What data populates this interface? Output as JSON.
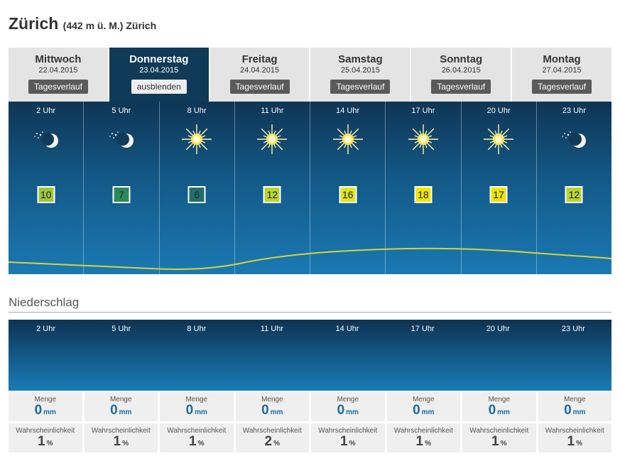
{
  "location": {
    "name": "Zürich",
    "sub": "(442 m ü. M.) Zürich"
  },
  "days": [
    {
      "name": "Mittwoch",
      "date": "22.04.2015",
      "button": "Tagesverlauf",
      "active": false
    },
    {
      "name": "Donnerstag",
      "date": "23.04.2015",
      "button": "ausblenden",
      "active": true
    },
    {
      "name": "Freitag",
      "date": "24.04.2015",
      "button": "Tagesverlauf",
      "active": false
    },
    {
      "name": "Samstag",
      "date": "25.04.2015",
      "button": "Tagesverlauf",
      "active": false
    },
    {
      "name": "Sonntag",
      "date": "26.04.2015",
      "button": "Tagesverlauf",
      "active": false
    },
    {
      "name": "Montag",
      "date": "27.04.2015",
      "button": "Tagesverlauf",
      "active": false
    }
  ],
  "hours": [
    {
      "time": "2 Uhr",
      "icon": "moon-stars-icon",
      "temp": "10",
      "tempColor": "#9dc73c"
    },
    {
      "time": "5 Uhr",
      "icon": "moon-stars-icon",
      "temp": "7",
      "tempColor": "#2c8a5a"
    },
    {
      "time": "8 Uhr",
      "icon": "sun-icon",
      "temp": "6",
      "tempColor": "#226e6b"
    },
    {
      "time": "11 Uhr",
      "icon": "sun-icon",
      "temp": "12",
      "tempColor": "#b7d433"
    },
    {
      "time": "14 Uhr",
      "icon": "sun-icon",
      "temp": "16",
      "tempColor": "#dce41f"
    },
    {
      "time": "17 Uhr",
      "icon": "sun-icon",
      "temp": "18",
      "tempColor": "#f0e400"
    },
    {
      "time": "20 Uhr",
      "icon": "sun-icon",
      "temp": "17",
      "tempColor": "#ebe40a"
    },
    {
      "time": "23 Uhr",
      "icon": "moon-stars-icon",
      "temp": "12",
      "tempColor": "#b7d433"
    }
  ],
  "precip": {
    "title": "Niederschlag",
    "amount_label": "Menge",
    "amount_unit": "mm",
    "prob_label": "Wahrscheinlichkeit",
    "prob_unit": "%",
    "amounts": [
      "0",
      "0",
      "0",
      "0",
      "0",
      "0",
      "0",
      "0"
    ],
    "probs": [
      "1",
      "1",
      "1",
      "2",
      "1",
      "1",
      "1",
      "1"
    ]
  },
  "colors": {
    "accent": "#0f3a58",
    "value_blue": "#1d6c9e",
    "temp_line": "#d8d23a"
  }
}
